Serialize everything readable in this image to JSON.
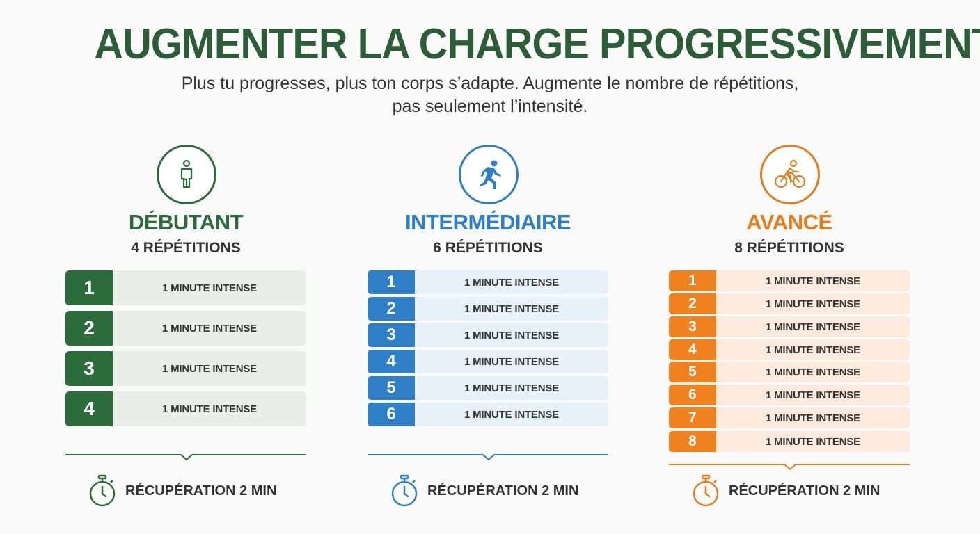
{
  "title": "AUGMENTER LA CHARGE PROGRESSIVEMENT",
  "subtitle_line1": "Plus tu progresses, plus ton corps s’adapte. Augmente le nombre de répétitions,",
  "subtitle_line2": "pas seulement l’intensité.",
  "levels": [
    {
      "icon": "standing-person-icon",
      "name": "DÉBUTANT",
      "reps": "4 RÉPÉTITIONS",
      "color": "#2c6b3a",
      "rows": [
        {
          "n": "1",
          "label": "1 MINUTE INTENSE"
        },
        {
          "n": "2",
          "label": "1 MINUTE INTENSE"
        },
        {
          "n": "3",
          "label": "1 MINUTE INTENSE"
        },
        {
          "n": "4",
          "label": "1 MINUTE INTENSE"
        }
      ],
      "recovery": "RÉCUPÉRATION 2 MIN"
    },
    {
      "icon": "running-person-icon",
      "name": "INTERMÉDIAIRE",
      "reps": "6 RÉPÉTITIONS",
      "color": "#2e7fc6",
      "rows": [
        {
          "n": "1",
          "label": "1 MINUTE INTENSE"
        },
        {
          "n": "2",
          "label": "1 MINUTE INTENSE"
        },
        {
          "n": "3",
          "label": "1 MINUTE INTENSE"
        },
        {
          "n": "4",
          "label": "1 MINUTE INTENSE"
        },
        {
          "n": "5",
          "label": "1 MINUTE INTENSE"
        },
        {
          "n": "6",
          "label": "1 MINUTE INTENSE"
        }
      ],
      "recovery": "RÉCUPÉRATION 2 MIN"
    },
    {
      "icon": "cyclist-icon",
      "name": "AVANCÉ",
      "reps": "8 RÉPÉTITIONS",
      "color": "#e57d1e",
      "rows": [
        {
          "n": "1",
          "label": "1 MINUTE INTENSE"
        },
        {
          "n": "2",
          "label": "1 MINUTE INTENSE"
        },
        {
          "n": "3",
          "label": "1 MINUTE INTENSE"
        },
        {
          "n": "4",
          "label": "1 MINUTE INTENSE"
        },
        {
          "n": "5",
          "label": "1 MINUTE INTENSE"
        },
        {
          "n": "6",
          "label": "1 MINUTE INTENSE"
        },
        {
          "n": "7",
          "label": "1 MINUTE INTENSE"
        },
        {
          "n": "8",
          "label": "1 MINUTE INTENSE"
        }
      ],
      "recovery": "RÉCUPÉRATION 2 MIN"
    }
  ]
}
